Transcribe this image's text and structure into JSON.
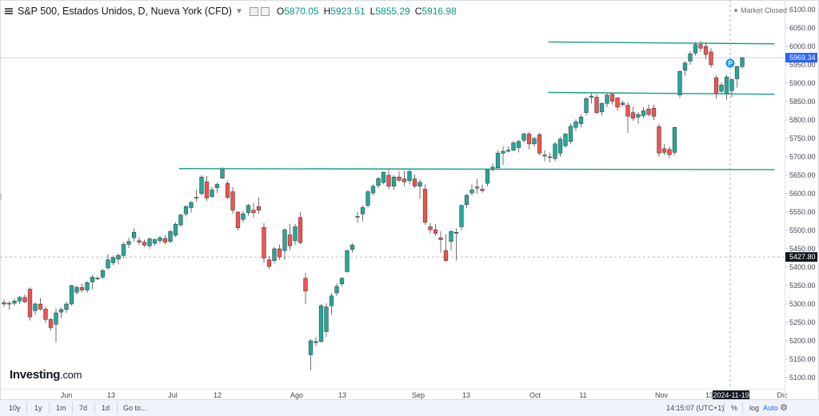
{
  "header": {
    "title": "S&P 500, Estados Unidos, D, Nueva York (CFD)",
    "ohlc": [
      {
        "label": "O",
        "value": "5870.05"
      },
      {
        "label": "H",
        "value": "5923.51"
      },
      {
        "label": "L",
        "value": "5855.29"
      },
      {
        "label": "C",
        "value": "5916.98"
      }
    ],
    "market_status": "Market Closed"
  },
  "logo": {
    "main": "Investing",
    "suffix": ".com"
  },
  "price_axis": {
    "last_price_label": "5969.34",
    "crosshair_price_label": "5427.80",
    "crosshair_date_label": "2024-11-19",
    "ticks": [
      "6100.00",
      "6050.00",
      "6000.00",
      "5950.00",
      "5900.00",
      "5850.00",
      "5800.00",
      "5750.00",
      "5700.00",
      "5650.00",
      "5600.00",
      "5550.00",
      "5500.00",
      "5450.00",
      "5400.00",
      "5350.00",
      "5300.00",
      "5250.00",
      "5200.00",
      "5150.00",
      "5100.00"
    ]
  },
  "time_axis": {
    "ticks": [
      "Jun",
      "13",
      "Jul",
      "12",
      "Ago",
      "13",
      "Sep",
      "13",
      "Oct",
      "11",
      "Nov",
      "13",
      "Dic"
    ]
  },
  "bottom_bar": {
    "ranges": [
      "10y",
      "1y",
      "1m",
      "7d",
      "1d"
    ],
    "goto": "Go to...",
    "clock": "14:15:07 (UTC+1)",
    "percent": "%",
    "log": "log",
    "auto": "Auto"
  },
  "marker": {
    "label": "P"
  },
  "chart_data": {
    "type": "candlestick",
    "title": "S&P 500, Estados Unidos, D, Nueva York (CFD)",
    "ylim": [
      5080,
      6120
    ],
    "up_color": "#26a69a",
    "down_color": "#ef5350",
    "trendline_color": "#1a9e8a",
    "grid": false,
    "candles": [
      [
        5304,
        5312,
        5292,
        5300
      ],
      [
        5300,
        5308,
        5285,
        5302
      ],
      [
        5302,
        5315,
        5295,
        5308
      ],
      [
        5308,
        5322,
        5300,
        5318
      ],
      [
        5318,
        5326,
        5302,
        5306
      ],
      [
        5340,
        5345,
        5255,
        5265
      ],
      [
        5282,
        5305,
        5270,
        5300
      ],
      [
        5300,
        5316,
        5282,
        5286
      ],
      [
        5286,
        5293,
        5248,
        5258
      ],
      [
        5258,
        5262,
        5228,
        5236
      ],
      [
        5245,
        5288,
        5195,
        5276
      ],
      [
        5278,
        5290,
        5262,
        5285
      ],
      [
        5285,
        5306,
        5275,
        5300
      ],
      [
        5300,
        5352,
        5295,
        5350
      ],
      [
        5332,
        5350,
        5325,
        5345
      ],
      [
        5345,
        5355,
        5332,
        5338
      ],
      [
        5338,
        5362,
        5330,
        5358
      ],
      [
        5360,
        5378,
        5340,
        5373
      ],
      [
        5370,
        5375,
        5365,
        5370
      ],
      [
        5373,
        5395,
        5368,
        5391
      ],
      [
        5398,
        5435,
        5393,
        5420
      ],
      [
        5412,
        5432,
        5405,
        5426
      ],
      [
        5422,
        5438,
        5408,
        5432
      ],
      [
        5432,
        5468,
        5425,
        5462
      ],
      [
        5462,
        5480,
        5452,
        5470
      ],
      [
        5480,
        5505,
        5470,
        5495
      ],
      [
        5472,
        5482,
        5460,
        5468
      ],
      [
        5468,
        5475,
        5455,
        5460
      ],
      [
        5458,
        5480,
        5450,
        5477
      ],
      [
        5465,
        5478,
        5458,
        5475
      ],
      [
        5472,
        5485,
        5465,
        5480
      ],
      [
        5478,
        5488,
        5462,
        5468
      ],
      [
        5470,
        5502,
        5465,
        5497
      ],
      [
        5487,
        5522,
        5482,
        5517
      ],
      [
        5515,
        5545,
        5510,
        5542
      ],
      [
        5545,
        5568,
        5538,
        5565
      ],
      [
        5562,
        5580,
        5548,
        5576
      ],
      [
        5590,
        5610,
        5578,
        5588
      ],
      [
        5600,
        5650,
        5595,
        5645
      ],
      [
        5632,
        5648,
        5580,
        5588
      ],
      [
        5592,
        5618,
        5588,
        5610
      ],
      [
        5616,
        5630,
        5602,
        5625
      ],
      [
        5642,
        5672,
        5640,
        5668
      ],
      [
        5628,
        5635,
        5585,
        5590
      ],
      [
        5605,
        5618,
        5545,
        5555
      ],
      [
        5550,
        5552,
        5500,
        5507
      ],
      [
        5530,
        5552,
        5522,
        5545
      ],
      [
        5548,
        5572,
        5540,
        5568
      ],
      [
        5555,
        5575,
        5535,
        5548
      ],
      [
        5565,
        5590,
        5545,
        5555
      ],
      [
        5508,
        5520,
        5412,
        5425
      ],
      [
        5420,
        5430,
        5395,
        5402
      ],
      [
        5418,
        5455,
        5410,
        5450
      ],
      [
        5450,
        5462,
        5420,
        5428
      ],
      [
        5445,
        5505,
        5420,
        5502
      ],
      [
        5488,
        5518,
        5445,
        5458
      ],
      [
        5472,
        5518,
        5460,
        5510
      ],
      [
        5535,
        5550,
        5462,
        5467
      ],
      [
        5370,
        5385,
        5300,
        5335
      ],
      [
        5162,
        5205,
        5120,
        5200
      ],
      [
        5195,
        5210,
        5185,
        5198
      ],
      [
        5198,
        5300,
        5195,
        5295
      ],
      [
        5225,
        5302,
        5210,
        5292
      ],
      [
        5295,
        5330,
        5270,
        5322
      ],
      [
        5330,
        5356,
        5322,
        5348
      ],
      [
        5355,
        5372,
        5348,
        5370
      ],
      [
        5388,
        5448,
        5385,
        5445
      ],
      [
        5448,
        5465,
        5440,
        5460
      ],
      [
        5538,
        5550,
        5520,
        5538
      ],
      [
        5545,
        5568,
        5525,
        5562
      ],
      [
        5568,
        5610,
        5562,
        5605
      ],
      [
        5602,
        5625,
        5595,
        5620
      ],
      [
        5622,
        5645,
        5615,
        5641
      ],
      [
        5630,
        5660,
        5625,
        5658
      ],
      [
        5650,
        5665,
        5612,
        5620
      ],
      [
        5620,
        5650,
        5610,
        5645
      ],
      [
        5645,
        5660,
        5632,
        5636
      ],
      [
        5640,
        5662,
        5620,
        5632
      ],
      [
        5635,
        5665,
        5625,
        5660
      ],
      [
        5640,
        5652,
        5615,
        5620
      ],
      [
        5620,
        5638,
        5585,
        5631
      ],
      [
        5612,
        5625,
        5515,
        5522
      ],
      [
        5510,
        5520,
        5492,
        5502
      ],
      [
        5502,
        5518,
        5485,
        5492
      ],
      [
        5480,
        5498,
        5440,
        5475
      ],
      [
        5445,
        5490,
        5415,
        5418
      ],
      [
        5470,
        5502,
        5445,
        5497
      ],
      [
        5492,
        5505,
        5418,
        5495
      ],
      [
        5510,
        5570,
        5500,
        5568
      ],
      [
        5570,
        5600,
        5560,
        5595
      ],
      [
        5602,
        5625,
        5595,
        5610
      ],
      [
        5615,
        5640,
        5600,
        5618
      ],
      [
        5612,
        5625,
        5602,
        5608
      ],
      [
        5628,
        5668,
        5620,
        5665
      ],
      [
        5665,
        5682,
        5660,
        5672
      ],
      [
        5670,
        5718,
        5665,
        5710
      ],
      [
        5710,
        5728,
        5678,
        5715
      ],
      [
        5715,
        5728,
        5712,
        5718
      ],
      [
        5718,
        5742,
        5715,
        5738
      ],
      [
        5725,
        5745,
        5712,
        5742
      ],
      [
        5745,
        5766,
        5738,
        5762
      ],
      [
        5762,
        5768,
        5720,
        5735
      ],
      [
        5735,
        5755,
        5728,
        5750
      ],
      [
        5760,
        5765,
        5705,
        5710
      ],
      [
        5705,
        5718,
        5688,
        5702
      ],
      [
        5700,
        5712,
        5685,
        5700
      ],
      [
        5695,
        5740,
        5688,
        5735
      ],
      [
        5710,
        5755,
        5700,
        5748
      ],
      [
        5730,
        5765,
        5725,
        5762
      ],
      [
        5742,
        5790,
        5735,
        5783
      ],
      [
        5780,
        5802,
        5770,
        5795
      ],
      [
        5790,
        5815,
        5780,
        5808
      ],
      [
        5820,
        5862,
        5812,
        5858
      ],
      [
        5862,
        5872,
        5845,
        5865
      ],
      [
        5862,
        5870,
        5815,
        5820
      ],
      [
        5822,
        5848,
        5812,
        5845
      ],
      [
        5845,
        5872,
        5835,
        5868
      ],
      [
        5870,
        5875,
        5842,
        5851
      ],
      [
        5860,
        5862,
        5825,
        5835
      ],
      [
        5846,
        5852,
        5838,
        5842
      ],
      [
        5840,
        5848,
        5765,
        5810
      ],
      [
        5820,
        5835,
        5798,
        5805
      ],
      [
        5808,
        5822,
        5790,
        5815
      ],
      [
        5812,
        5835,
        5805,
        5825
      ],
      [
        5830,
        5842,
        5810,
        5815
      ],
      [
        5832,
        5842,
        5800,
        5810
      ],
      [
        5782,
        5790,
        5700,
        5710
      ],
      [
        5722,
        5735,
        5705,
        5712
      ],
      [
        5720,
        5728,
        5696,
        5706
      ],
      [
        5712,
        5782,
        5705,
        5780
      ],
      [
        5868,
        5935,
        5860,
        5932
      ],
      [
        5935,
        5960,
        5920,
        5955
      ],
      [
        5960,
        5988,
        5950,
        5980
      ],
      [
        5982,
        6012,
        5975,
        6005
      ],
      [
        6005,
        6015,
        5985,
        5995
      ],
      [
        6000,
        6012,
        5965,
        5978
      ],
      [
        5985,
        5995,
        5942,
        5950
      ],
      [
        5915,
        5922,
        5858,
        5872
      ],
      [
        5878,
        5902,
        5872,
        5895
      ],
      [
        5872,
        5923,
        5855,
        5917
      ],
      [
        5880,
        5912,
        5862,
        5910
      ],
      [
        5912,
        5948,
        5888,
        5945
      ],
      [
        5945,
        5972,
        5940,
        5969
      ]
    ],
    "trendlines": [
      {
        "from": {
          "index": 105,
          "price": 6012
        },
        "to": {
          "index": 147,
          "price": 6007
        }
      },
      {
        "from": {
          "index": 105,
          "price": 5875
        },
        "to": {
          "index": 147,
          "price": 5870
        }
      },
      {
        "from": {
          "index": 34,
          "price": 5668
        },
        "to": {
          "index": 147,
          "price": 5665
        }
      }
    ]
  }
}
